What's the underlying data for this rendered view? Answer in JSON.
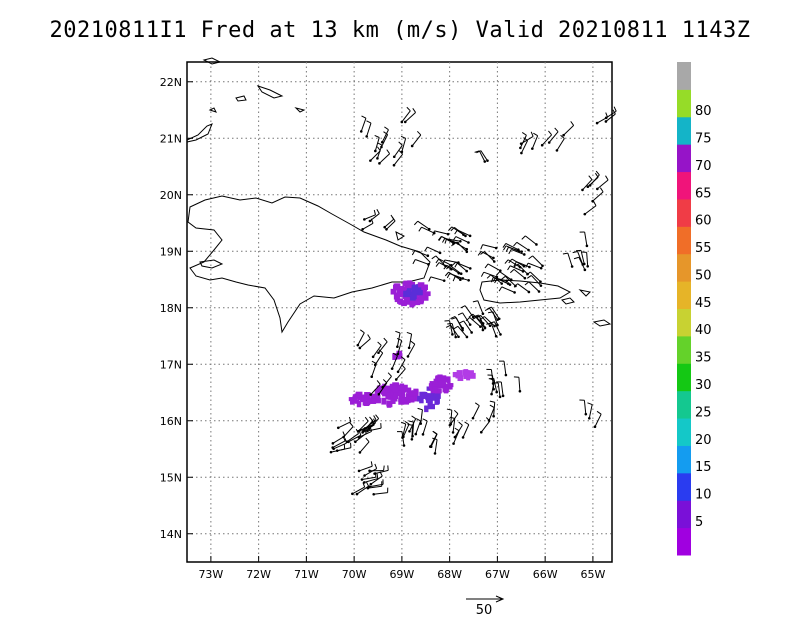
{
  "title": "20210811I1 Fred at 13 km (m/s) Valid 20210811 1143Z",
  "map": {
    "lat_labels": [
      "22N",
      "21N",
      "20N",
      "19N",
      "18N",
      "17N",
      "16N",
      "15N",
      "14N"
    ],
    "lon_labels": [
      "73W",
      "72W",
      "71W",
      "70W",
      "69W",
      "68W",
      "67W",
      "66W",
      "65W"
    ],
    "extent": {
      "lon_min": -73.5,
      "lon_max": -64.6,
      "lat_min": 13.5,
      "lat_max": 22.35
    },
    "grid": "dotted"
  },
  "colorbar": {
    "labels": [
      "5",
      "10",
      "15",
      "20",
      "25",
      "30",
      "35",
      "40",
      "45",
      "50",
      "55",
      "60",
      "65",
      "70",
      "75",
      "80"
    ],
    "colors": [
      "#a000e0",
      "#7a10d8",
      "#2a3cf0",
      "#149cf0",
      "#14c8c8",
      "#14c890",
      "#14c814",
      "#64d22a",
      "#c8d232",
      "#e6b428",
      "#e6962a",
      "#f06e28",
      "#f03c46",
      "#f0147a",
      "#9614c8",
      "#14b4c8",
      "#96dc28",
      "#a8a8a8"
    ]
  },
  "reference_vector": {
    "label": "50"
  }
}
